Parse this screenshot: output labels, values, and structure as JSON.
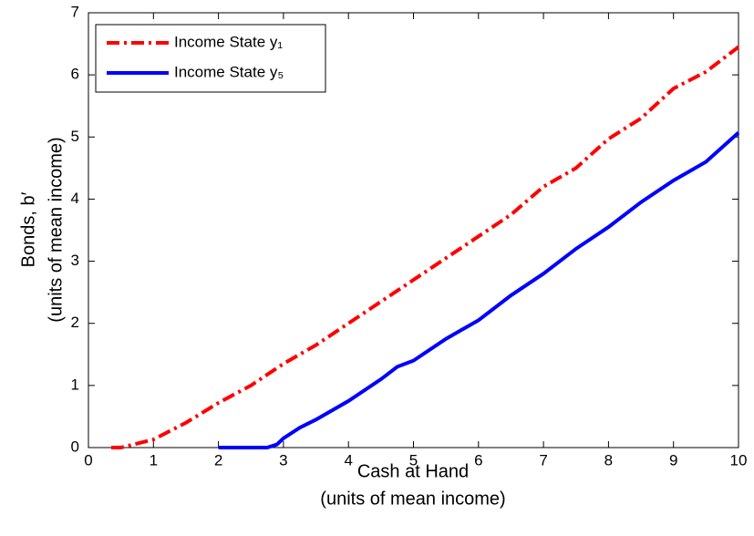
{
  "chart_data": {
    "type": "line",
    "xlabel": [
      "Cash at Hand",
      "(units of mean income)"
    ],
    "ylabel": [
      "Bonds, b′",
      "(units of mean income)"
    ],
    "xlim": [
      0,
      10
    ],
    "xticks": [
      0,
      1,
      2,
      3,
      4,
      5,
      6,
      7,
      8,
      9,
      10
    ],
    "ylim": [
      0,
      7
    ],
    "yticks": [
      0,
      1,
      2,
      3,
      4,
      5,
      6,
      7
    ],
    "legend": "upper left",
    "series": [
      {
        "name": "Income State y₁",
        "color": "#ff0000",
        "style": "dashdot",
        "x": [
          0.35,
          0.5,
          1,
          1.5,
          2,
          2.5,
          3,
          3.5,
          4,
          4.5,
          5,
          5.5,
          6,
          6.5,
          7,
          7.5,
          8,
          8.5,
          9,
          9.5,
          10
        ],
        "values": [
          0,
          0,
          0.13,
          0.4,
          0.72,
          1.0,
          1.35,
          1.65,
          2.0,
          2.35,
          2.7,
          3.05,
          3.4,
          3.75,
          4.2,
          4.5,
          4.97,
          5.3,
          5.78,
          6.05,
          6.45
        ]
      },
      {
        "name": "Income State y₅",
        "color": "#0000ff",
        "style": "solid",
        "x": [
          2,
          2.5,
          2.75,
          2.9,
          3,
          3.25,
          3.5,
          4,
          4.5,
          4.75,
          5,
          5.5,
          6,
          6.5,
          7,
          7.5,
          8,
          8.5,
          9,
          9.5,
          10
        ],
        "values": [
          0,
          0,
          0,
          0.05,
          0.15,
          0.32,
          0.45,
          0.75,
          1.1,
          1.3,
          1.4,
          1.75,
          2.05,
          2.45,
          2.8,
          3.2,
          3.55,
          3.95,
          4.3,
          4.6,
          5.07
        ]
      }
    ]
  }
}
